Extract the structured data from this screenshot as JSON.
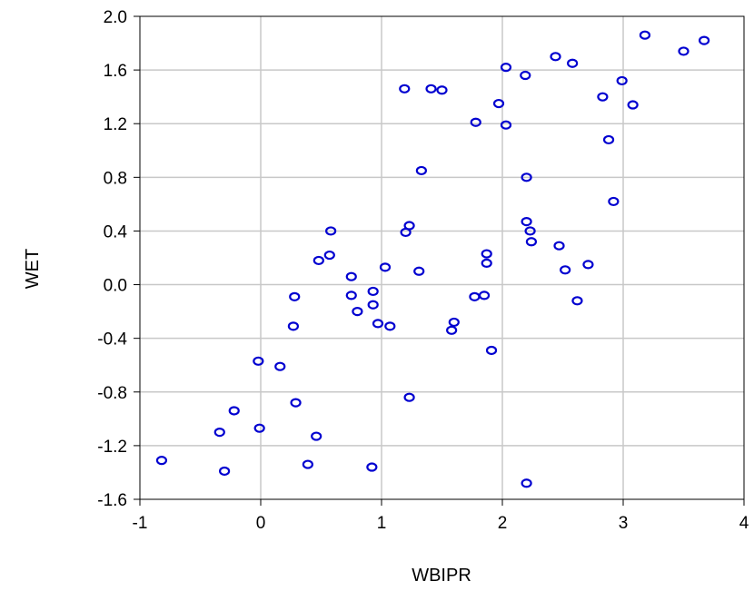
{
  "chart_data": {
    "type": "scatter",
    "xlabel": "WBIPR",
    "ylabel": "WET",
    "xlim": [
      -1,
      4
    ],
    "ylim": [
      -1.6,
      2.0
    ],
    "x_ticks": [
      "-1",
      "0",
      "1",
      "2",
      "3",
      "4"
    ],
    "y_ticks": [
      "2.0",
      "1.6",
      "1.2",
      "0.8",
      "0.4",
      "0.0",
      "-0.4",
      "-0.8",
      "-1.2",
      "-1.6"
    ],
    "x_tick_values": [
      -1,
      0,
      1,
      2,
      3,
      4
    ],
    "y_tick_values": [
      2.0,
      1.6,
      1.2,
      0.8,
      0.4,
      0.0,
      -0.4,
      -0.8,
      -1.2,
      -1.6
    ],
    "grid": true,
    "marker_color": "#0000d0",
    "grid_color": "#c8c8c8",
    "points": [
      {
        "x": -0.82,
        "y": -1.31
      },
      {
        "x": -0.34,
        "y": -1.1
      },
      {
        "x": -0.3,
        "y": -1.39
      },
      {
        "x": -0.22,
        "y": -0.94
      },
      {
        "x": -0.02,
        "y": -0.57
      },
      {
        "x": -0.01,
        "y": -1.07
      },
      {
        "x": 0.16,
        "y": -0.61
      },
      {
        "x": 0.27,
        "y": -0.31
      },
      {
        "x": 0.28,
        "y": -0.09
      },
      {
        "x": 0.29,
        "y": -0.88
      },
      {
        "x": 0.39,
        "y": -1.34
      },
      {
        "x": 0.46,
        "y": -1.13
      },
      {
        "x": 0.48,
        "y": 0.18
      },
      {
        "x": 0.57,
        "y": 0.22
      },
      {
        "x": 0.58,
        "y": 0.4
      },
      {
        "x": 0.75,
        "y": 0.06
      },
      {
        "x": 0.75,
        "y": -0.08
      },
      {
        "x": 0.8,
        "y": -0.2
      },
      {
        "x": 0.92,
        "y": -1.36
      },
      {
        "x": 0.93,
        "y": -0.05
      },
      {
        "x": 0.93,
        "y": -0.15
      },
      {
        "x": 0.97,
        "y": -0.29
      },
      {
        "x": 1.03,
        "y": 0.13
      },
      {
        "x": 1.07,
        "y": -0.31
      },
      {
        "x": 1.19,
        "y": 1.46
      },
      {
        "x": 1.2,
        "y": 0.39
      },
      {
        "x": 1.23,
        "y": 0.44
      },
      {
        "x": 1.23,
        "y": -0.84
      },
      {
        "x": 1.31,
        "y": 0.1
      },
      {
        "x": 1.33,
        "y": 0.85
      },
      {
        "x": 1.41,
        "y": 1.46
      },
      {
        "x": 1.5,
        "y": 1.45
      },
      {
        "x": 1.58,
        "y": -0.34
      },
      {
        "x": 1.6,
        "y": -0.28
      },
      {
        "x": 1.77,
        "y": -0.09
      },
      {
        "x": 1.78,
        "y": 1.21
      },
      {
        "x": 1.85,
        "y": -0.08
      },
      {
        "x": 1.87,
        "y": 0.23
      },
      {
        "x": 1.87,
        "y": 0.16
      },
      {
        "x": 1.91,
        "y": -0.49
      },
      {
        "x": 1.97,
        "y": 1.35
      },
      {
        "x": 2.03,
        "y": 1.62
      },
      {
        "x": 2.03,
        "y": 1.19
      },
      {
        "x": 2.19,
        "y": 1.56
      },
      {
        "x": 2.2,
        "y": 0.8
      },
      {
        "x": 2.2,
        "y": 0.47
      },
      {
        "x": 2.23,
        "y": 0.4
      },
      {
        "x": 2.24,
        "y": 0.32
      },
      {
        "x": 2.2,
        "y": -1.48
      },
      {
        "x": 2.44,
        "y": 1.7
      },
      {
        "x": 2.47,
        "y": 0.29
      },
      {
        "x": 2.52,
        "y": 0.11
      },
      {
        "x": 2.58,
        "y": 1.65
      },
      {
        "x": 2.62,
        "y": -0.12
      },
      {
        "x": 2.71,
        "y": 0.15
      },
      {
        "x": 2.83,
        "y": 1.4
      },
      {
        "x": 2.88,
        "y": 1.08
      },
      {
        "x": 2.92,
        "y": 0.62
      },
      {
        "x": 2.99,
        "y": 1.52
      },
      {
        "x": 3.08,
        "y": 1.34
      },
      {
        "x": 3.18,
        "y": 1.86
      },
      {
        "x": 3.5,
        "y": 1.74
      },
      {
        "x": 3.67,
        "y": 1.82
      }
    ]
  }
}
